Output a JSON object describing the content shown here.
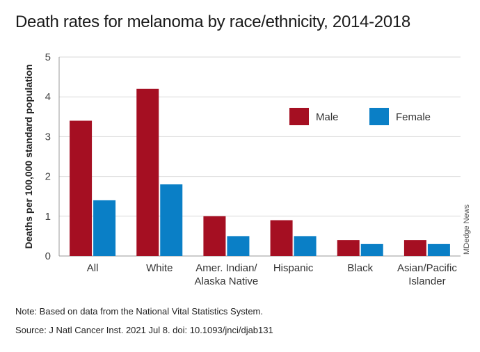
{
  "footer": {
    "note": "Note: Based on data from the National Vital Statistics System.",
    "source": "Source: J Natl Cancer Inst. 2021 Jul 8. doi: 10.1093/jnci/djab131"
  },
  "credit": "MDedge News",
  "colors": {
    "male": "#a50f22",
    "female": "#0a7fc6",
    "grid": "#d9d9d9"
  },
  "chart_data": {
    "type": "bar",
    "title": "Death rates for melanoma by race/ethnicity, 2014-2018",
    "ylabel": "Deaths per 100,000 standard population",
    "xlabel": "",
    "ylim": [
      0,
      5
    ],
    "yticks": [
      "0",
      "1",
      "2",
      "3",
      "4",
      "5"
    ],
    "grid": true,
    "legend_position": "top-right",
    "categories": [
      [
        "All"
      ],
      [
        "White"
      ],
      [
        "Amer. Indian/",
        "Alaska Native"
      ],
      [
        "Hispanic"
      ],
      [
        "Black"
      ],
      [
        "Asian/Pacific",
        "Islander"
      ]
    ],
    "series": [
      {
        "name": "Male",
        "values": [
          3.4,
          4.2,
          1.0,
          0.9,
          0.4,
          0.4
        ]
      },
      {
        "name": "Female",
        "values": [
          1.4,
          1.8,
          0.5,
          0.5,
          0.3,
          0.3
        ]
      }
    ]
  }
}
